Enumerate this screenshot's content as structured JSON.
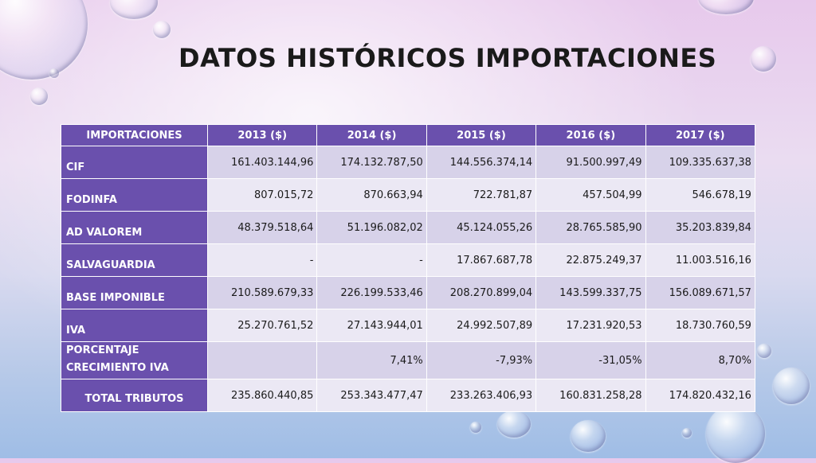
{
  "slide": {
    "title": "DATOS HISTÓRICOS IMPORTACIONES"
  },
  "table": {
    "headers": [
      "IMPORTACIONES",
      "2013 ($)",
      "2014 ($)",
      "2015 ($)",
      "2016 ($)",
      "2017 ($)"
    ],
    "rows": [
      {
        "label": "CIF",
        "values": [
          "161.403.144,96",
          "174.132.787,50",
          "144.556.374,14",
          "91.500.997,49",
          "109.335.637,38"
        ]
      },
      {
        "label": "FODINFA",
        "values": [
          "807.015,72",
          "870.663,94",
          "722.781,87",
          "457.504,99",
          "546.678,19"
        ]
      },
      {
        "label": "AD VALOREM",
        "values": [
          "48.379.518,64",
          "51.196.082,02",
          "45.124.055,26",
          "28.765.585,90",
          "35.203.839,84"
        ]
      },
      {
        "label": "SALVAGUARDIA",
        "values": [
          "-",
          "-",
          "17.867.687,78",
          "22.875.249,37",
          "11.003.516,16"
        ]
      },
      {
        "label": "BASE IMPONIBLE",
        "values": [
          "210.589.679,33",
          "226.199.533,46",
          "208.270.899,04",
          "143.599.337,75",
          "156.089.671,57"
        ]
      },
      {
        "label": "IVA",
        "values": [
          "25.270.761,52",
          "27.143.944,01",
          "24.992.507,89",
          "17.231.920,53",
          "18.730.760,59"
        ]
      },
      {
        "label_line1": "PORCENTAJE",
        "label_line2": "CRECIMIENTO IVA",
        "values": [
          "",
          "7,41%",
          "-7,93%",
          "-31,05%",
          "8,70%"
        ]
      },
      {
        "label": "TOTAL TRIBUTOS",
        "values": [
          "235.860.440,85",
          "253.343.477,47",
          "233.263.406,93",
          "160.831.258,28",
          "174.820.432,16"
        ]
      }
    ]
  }
}
